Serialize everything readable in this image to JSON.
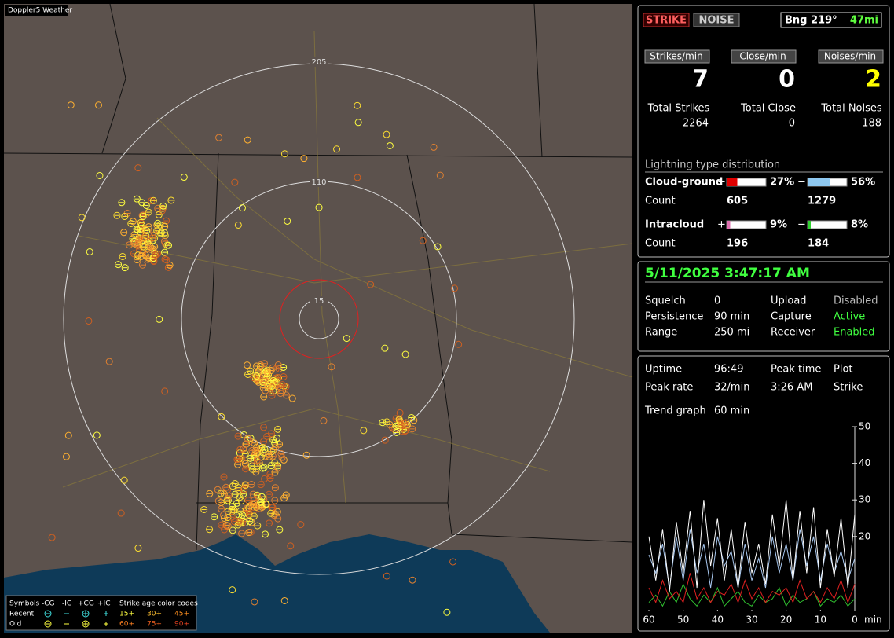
{
  "map": {
    "title": "Doppler5 Weather",
    "range_labels": [
      "205",
      "110",
      "15"
    ],
    "legend": {
      "symbols_label": "Symbols",
      "columns": [
        "-CG",
        "-IC",
        "+CG",
        "+IC"
      ],
      "rows": [
        "Recent",
        "Old"
      ],
      "age_label": "Strike age color codes",
      "age_codes": [
        [
          "15+",
          "30+",
          "45+"
        ],
        [
          "60+",
          "75+",
          "90+"
        ]
      ]
    }
  },
  "status": {
    "buttons": [
      "STRIKE",
      "NOISE"
    ],
    "bearing": "Bng 219°",
    "distance": "47mi",
    "rates": [
      {
        "label": "Strikes/min",
        "value": 7
      },
      {
        "label": "Close/min",
        "value": 0
      },
      {
        "label": "Noises/min",
        "value": 2
      }
    ],
    "totals": [
      {
        "label": "Total Strikes",
        "value": 2264
      },
      {
        "label": "Total Close",
        "value": 0
      },
      {
        "label": "Total Noises",
        "value": 188
      }
    ]
  },
  "distribution": {
    "title": "Lightning type distribution",
    "signs": [
      "+",
      "−"
    ],
    "count_label": "Count",
    "rows": [
      {
        "label": "Cloud-ground",
        "pos": {
          "value": 27,
          "label": "27%"
        },
        "neg": {
          "value": 56,
          "label": "56%"
        },
        "pos_count": 605,
        "neg_count": 1279,
        "pos_color": "#e00000",
        "neg_color": "#8ec8f0"
      },
      {
        "label": "Intracloud",
        "pos": {
          "value": 9,
          "label": "9%"
        },
        "neg": {
          "value": 8,
          "label": "8%"
        },
        "pos_count": 196,
        "neg_count": 184,
        "pos_color": "#e070b0",
        "neg_color": "#30d030"
      }
    ]
  },
  "settings": {
    "datetime": "5/11/2025 3:47:17 AM",
    "rows": [
      [
        "Squelch",
        "0",
        "Upload",
        "Disabled"
      ],
      [
        "Persistence",
        "90 min",
        "Capture",
        "Active"
      ],
      [
        "Range",
        "250 mi",
        "Receiver",
        "Enabled"
      ]
    ]
  },
  "stats": {
    "rows": [
      [
        "Uptime",
        "96:49",
        "Peak time",
        "Plot"
      ],
      [
        "Peak rate",
        "32/min",
        "3:26 AM",
        "Strike"
      ]
    ],
    "trend_label": "Trend graph",
    "trend_value": "60 min"
  },
  "chart_data": {
    "type": "line",
    "x": [
      60,
      58,
      56,
      54,
      52,
      50,
      48,
      46,
      44,
      42,
      40,
      38,
      36,
      34,
      32,
      30,
      28,
      26,
      24,
      22,
      20,
      18,
      16,
      14,
      12,
      10,
      8,
      6,
      4,
      2,
      0
    ],
    "xlim": [
      60,
      0
    ],
    "xticks": [
      60,
      50,
      40,
      30,
      20,
      10,
      0
    ],
    "x_unit": "min",
    "ylim": [
      0,
      50
    ],
    "yticks": [
      50,
      40,
      30,
      20
    ],
    "series": [
      {
        "color": "#ffffff",
        "values": [
          20,
          8,
          22,
          5,
          24,
          10,
          27,
          6,
          30,
          12,
          25,
          8,
          22,
          6,
          24,
          10,
          18,
          7,
          26,
          12,
          30,
          8,
          27,
          10,
          28,
          6,
          22,
          9,
          25,
          6,
          26
        ]
      },
      {
        "color": "#a8c8f0",
        "values": [
          15,
          10,
          18,
          6,
          20,
          8,
          22,
          10,
          18,
          6,
          20,
          12,
          16,
          6,
          18,
          8,
          14,
          6,
          20,
          10,
          18,
          8,
          22,
          12,
          20,
          8,
          18,
          10,
          16,
          8,
          14
        ]
      },
      {
        "color": "#e02020",
        "values": [
          6,
          2,
          8,
          3,
          5,
          2,
          10,
          3,
          6,
          2,
          5,
          4,
          7,
          2,
          8,
          3,
          6,
          2,
          5,
          4,
          6,
          2,
          8,
          3,
          5,
          2,
          6,
          3,
          8,
          2,
          7
        ]
      },
      {
        "color": "#30c030",
        "values": [
          2,
          4,
          1,
          5,
          2,
          7,
          3,
          1,
          4,
          2,
          6,
          1,
          3,
          5,
          2,
          1,
          4,
          2,
          3,
          6,
          1,
          4,
          2,
          3,
          5,
          1,
          3,
          2,
          4,
          1,
          3
        ]
      }
    ]
  }
}
